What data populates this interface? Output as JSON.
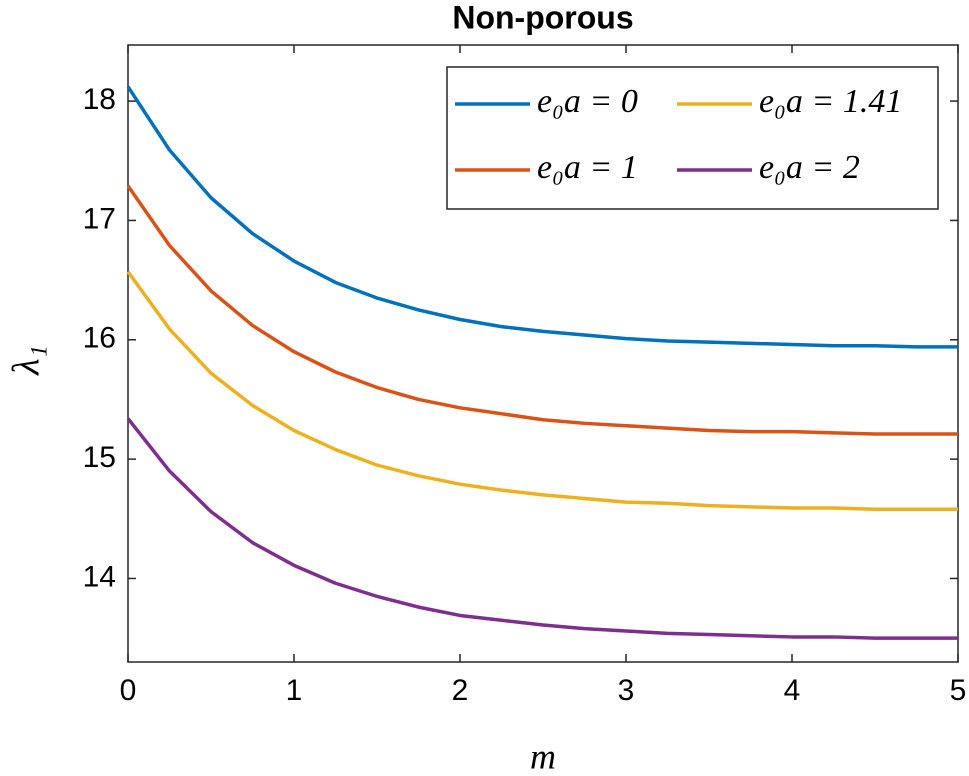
{
  "chart_data": {
    "type": "line",
    "title": "Non-porous",
    "xlabel": "m",
    "ylabel": "λ₁",
    "x": [
      0,
      0.25,
      0.5,
      0.75,
      1,
      1.25,
      1.5,
      1.75,
      2,
      2.25,
      2.5,
      2.75,
      3,
      3.25,
      3.5,
      3.75,
      4,
      4.25,
      4.5,
      4.75,
      5
    ],
    "series": [
      {
        "name": "e₀a = 0",
        "color": "#0072bd",
        "values": [
          18.12,
          17.59,
          17.19,
          16.89,
          16.66,
          16.48,
          16.35,
          16.25,
          16.17,
          16.11,
          16.07,
          16.04,
          16.01,
          15.99,
          15.98,
          15.97,
          15.96,
          15.95,
          15.95,
          15.94,
          15.94
        ]
      },
      {
        "name": "e₀a = 1",
        "color": "#d95319",
        "values": [
          17.29,
          16.79,
          16.41,
          16.12,
          15.9,
          15.73,
          15.6,
          15.5,
          15.43,
          15.38,
          15.33,
          15.3,
          15.28,
          15.26,
          15.24,
          15.23,
          15.23,
          15.22,
          15.21,
          15.21,
          15.21
        ]
      },
      {
        "name": "e₀a = 1.41",
        "color": "#edb120",
        "values": [
          16.57,
          16.09,
          15.72,
          15.45,
          15.24,
          15.08,
          14.95,
          14.86,
          14.79,
          14.74,
          14.7,
          14.67,
          14.64,
          14.63,
          14.61,
          14.6,
          14.59,
          14.59,
          14.58,
          14.58,
          14.58
        ]
      },
      {
        "name": "e₀a = 2",
        "color": "#7e2f8e",
        "values": [
          15.34,
          14.9,
          14.56,
          14.3,
          14.11,
          13.96,
          13.85,
          13.76,
          13.69,
          13.65,
          13.61,
          13.58,
          13.56,
          13.54,
          13.53,
          13.52,
          13.51,
          13.51,
          13.5,
          13.5,
          13.5
        ]
      }
    ],
    "xlim": [
      0,
      5
    ],
    "xticks": [
      0,
      1,
      2,
      3,
      4,
      5
    ],
    "ylim": [
      13.3,
      18.47
    ],
    "yticks": [
      14,
      15,
      16,
      17,
      18
    ],
    "legend": "top-right"
  }
}
